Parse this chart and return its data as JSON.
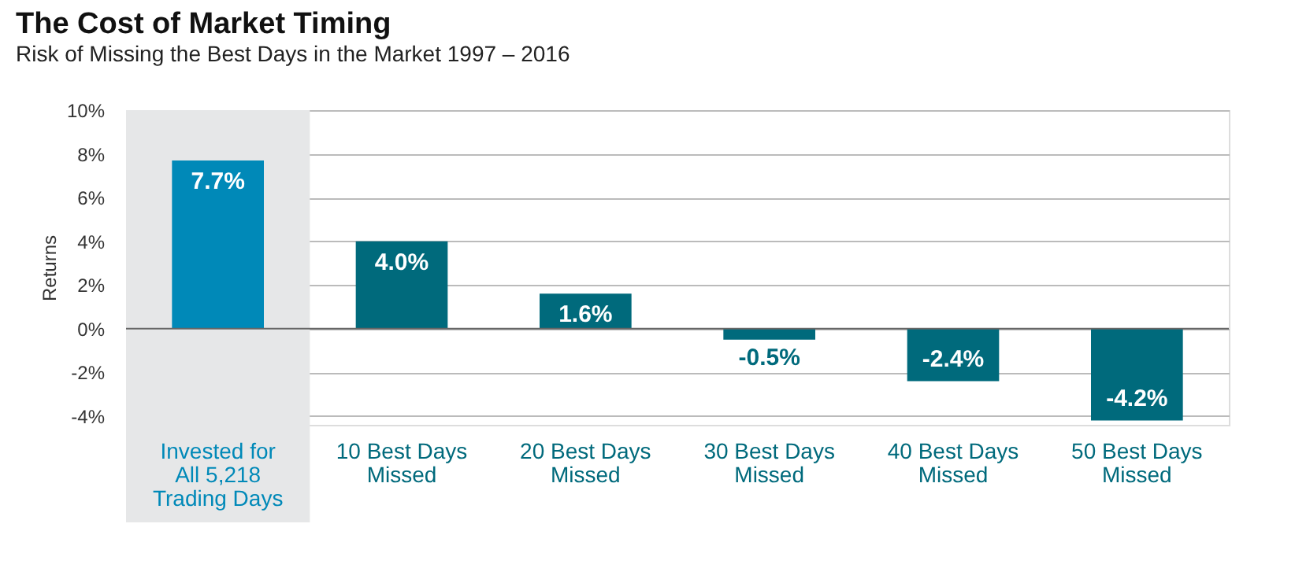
{
  "chart_data": {
    "type": "bar",
    "title": "The Cost of Market Timing",
    "subtitle": "Risk of Missing the Best Days in the Market 1997 – 2016",
    "ylabel": "Returns",
    "categories": [
      "Invested for\nAll 5,218\nTrading Days",
      "10 Best Days\nMissed",
      "20 Best Days\nMissed",
      "30 Best Days\nMissed",
      "40 Best Days\nMissed",
      "50 Best Days\nMissed"
    ],
    "values": [
      7.7,
      4.0,
      1.6,
      -0.5,
      -2.4,
      -4.2
    ],
    "colors": [
      "#0089b8",
      "#006a7c",
      "#006a7c",
      "#006a7c",
      "#006a7c",
      "#006a7c"
    ],
    "value_labels": [
      "7.7%",
      "4.0%",
      "1.6%",
      "-0.5%",
      "-2.4%",
      "-4.2%"
    ],
    "ylim": [
      -4.4,
      10
    ],
    "yticks": [
      {
        "value": -4,
        "label": "-4%"
      },
      {
        "value": -2,
        "label": "-2%"
      },
      {
        "value": 0,
        "label": "0%"
      },
      {
        "value": 2,
        "label": "2%"
      },
      {
        "value": 4,
        "label": "4%"
      },
      {
        "value": 6,
        "label": "6%"
      },
      {
        "value": 8,
        "label": "8%"
      },
      {
        "value": 10,
        "label": "10%"
      }
    ],
    "bands": [
      {
        "axis": "x",
        "from": "Invested for\nAll 5,218\nTrading Days",
        "to": "Invested for\nAll 5,218\nTrading Days",
        "color": "#e6e7e8"
      }
    ],
    "grid": "y"
  }
}
